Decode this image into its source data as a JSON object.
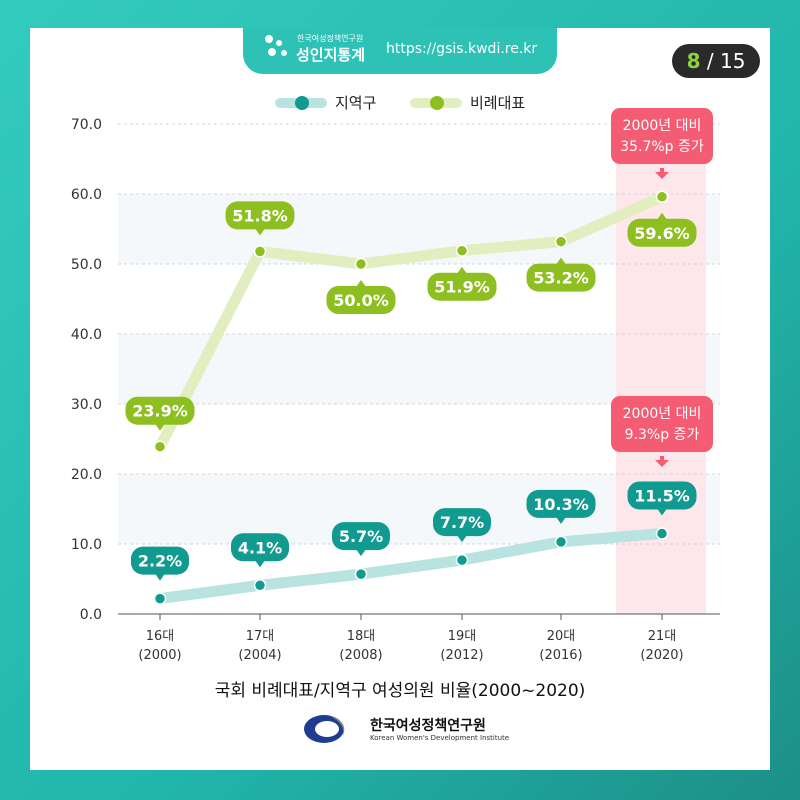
{
  "header": {
    "brand_small": "한국여성정책연구원",
    "brand_name": "성인지통계",
    "url": "https://gsis.kwdi.re.kr"
  },
  "page": {
    "current": "8",
    "separator": "/",
    "total": "15"
  },
  "colors": {
    "district_line": "#b9e3e1",
    "district_point": "#119a8f",
    "proportional_line": "#e3eec0",
    "proportional_point": "#8cbf1f",
    "highlight_band": "#fde7ea",
    "callout": "#f45c73",
    "stripe": "#f4f8fb"
  },
  "chart_data": {
    "type": "line",
    "title": "국회 비례대표/지역구 여성의원 비율(2000~2020)",
    "categories": [
      "16대\n(2000)",
      "17대\n(2004)",
      "18대\n(2008)",
      "19대\n(2012)",
      "20대\n(2016)",
      "21대\n(2020)"
    ],
    "y_ticks": [
      "0.0",
      "10.0",
      "20.0",
      "30.0",
      "40.0",
      "50.0",
      "60.0",
      "70.0"
    ],
    "ylim": [
      0,
      70
    ],
    "grid": true,
    "legend_position": "top",
    "series": [
      {
        "name": "지역구",
        "values": [
          2.2,
          4.1,
          5.7,
          7.7,
          10.3,
          11.5
        ],
        "labels": [
          "2.2%",
          "4.1%",
          "5.7%",
          "7.7%",
          "10.3%",
          "11.5%"
        ]
      },
      {
        "name": "비례대표",
        "values": [
          23.9,
          51.8,
          50.0,
          51.9,
          53.2,
          59.6
        ],
        "labels": [
          "23.9%",
          "51.8%",
          "50.0%",
          "51.9%",
          "53.2%",
          "59.6%"
        ]
      }
    ],
    "annotations": [
      {
        "category_index": 5,
        "series": "비례대표",
        "lines": [
          "2000년 대비",
          "35.7%p 증가"
        ]
      },
      {
        "category_index": 5,
        "series": "지역구",
        "lines": [
          "2000년 대비",
          "9.3%p 증가"
        ]
      }
    ]
  },
  "footer": {
    "org_kor": "한국여성정책연구원",
    "org_eng": "Korean Women's Development Institute"
  }
}
